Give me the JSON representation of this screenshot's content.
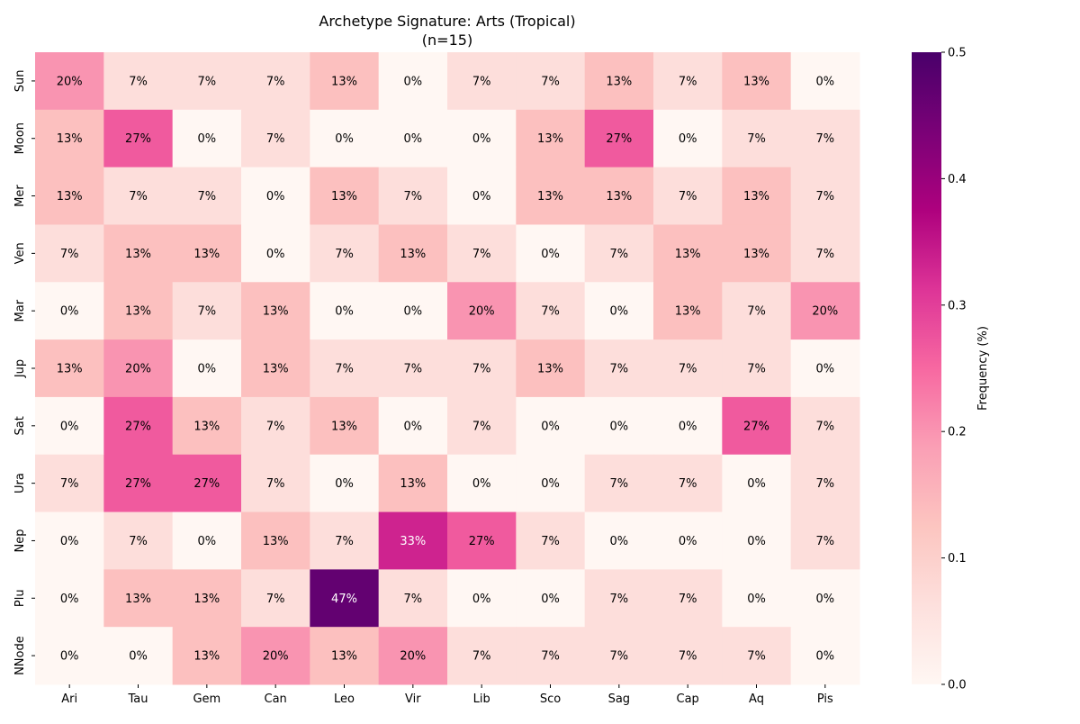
{
  "chart_data": {
    "type": "heatmap",
    "title": "Archetype Signature: Arts (Tropical)",
    "subtitle": "(n=15)",
    "xlabel": "",
    "ylabel": "",
    "x_categories": [
      "Ari",
      "Tau",
      "Gem",
      "Can",
      "Leo",
      "Vir",
      "Lib",
      "Sco",
      "Sag",
      "Cap",
      "Aq",
      "Pis"
    ],
    "y_categories": [
      "Sun",
      "Moon",
      "Mer",
      "Ven",
      "Mar",
      "Jup",
      "Sat",
      "Ura",
      "Nep",
      "Plu",
      "NNode"
    ],
    "values": [
      [
        0.2,
        0.067,
        0.067,
        0.067,
        0.133,
        0.0,
        0.067,
        0.067,
        0.133,
        0.067,
        0.133,
        0.0
      ],
      [
        0.133,
        0.267,
        0.0,
        0.067,
        0.0,
        0.0,
        0.0,
        0.133,
        0.267,
        0.0,
        0.067,
        0.067
      ],
      [
        0.133,
        0.067,
        0.067,
        0.0,
        0.133,
        0.067,
        0.0,
        0.133,
        0.133,
        0.067,
        0.133,
        0.067
      ],
      [
        0.067,
        0.133,
        0.133,
        0.0,
        0.067,
        0.133,
        0.067,
        0.0,
        0.067,
        0.133,
        0.133,
        0.067
      ],
      [
        0.0,
        0.133,
        0.067,
        0.133,
        0.0,
        0.0,
        0.2,
        0.067,
        0.0,
        0.133,
        0.067,
        0.2
      ],
      [
        0.133,
        0.2,
        0.0,
        0.133,
        0.067,
        0.067,
        0.067,
        0.133,
        0.067,
        0.067,
        0.067,
        0.0
      ],
      [
        0.0,
        0.267,
        0.133,
        0.067,
        0.133,
        0.0,
        0.067,
        0.0,
        0.0,
        0.0,
        0.267,
        0.067
      ],
      [
        0.067,
        0.267,
        0.267,
        0.067,
        0.0,
        0.133,
        0.0,
        0.0,
        0.067,
        0.067,
        0.0,
        0.067
      ],
      [
        0.0,
        0.067,
        0.0,
        0.133,
        0.067,
        0.333,
        0.267,
        0.067,
        0.0,
        0.0,
        0.0,
        0.067
      ],
      [
        0.0,
        0.133,
        0.133,
        0.067,
        0.467,
        0.067,
        0.0,
        0.0,
        0.067,
        0.067,
        0.0,
        0.0
      ],
      [
        0.0,
        0.0,
        0.133,
        0.2,
        0.133,
        0.2,
        0.067,
        0.067,
        0.067,
        0.067,
        0.067,
        0.0
      ]
    ],
    "annotation_format": "percent",
    "colorbar": {
      "label": "Frequency (%)",
      "range": [
        0.0,
        0.5
      ],
      "ticks": [
        "0.0",
        "0.1",
        "0.2",
        "0.3",
        "0.4",
        "0.5"
      ],
      "colormap": [
        "#fff7f3",
        "#fde0dd",
        "#fcc5c0",
        "#fa9fb5",
        "#f768a1",
        "#dd3497",
        "#ae017e",
        "#7a0177",
        "#49006a"
      ]
    },
    "grid": false
  }
}
